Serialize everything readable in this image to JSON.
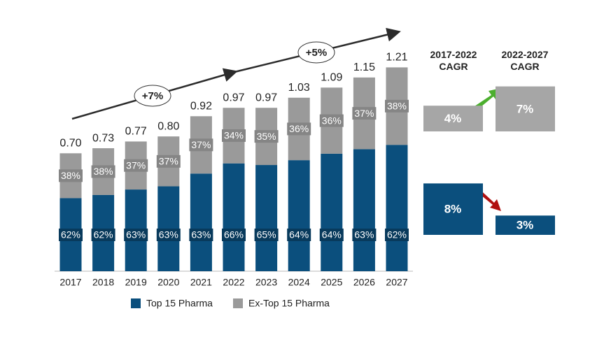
{
  "chart_data": {
    "type": "stacked-bar",
    "categories": [
      "2017",
      "2018",
      "2019",
      "2020",
      "2021",
      "2022",
      "2023",
      "2024",
      "2025",
      "2026",
      "2027"
    ],
    "series": [
      {
        "name": "Top 15 Pharma",
        "color": "#0b4f7d",
        "values": [
          62,
          62,
          63,
          63,
          63,
          66,
          65,
          64,
          64,
          63,
          62
        ],
        "value_labels": [
          "62%",
          "62%",
          "63%",
          "63%",
          "63%",
          "66%",
          "65%",
          "64%",
          "64%",
          "63%",
          "62%"
        ]
      },
      {
        "name": "Ex-Top 15 Pharma",
        "color": "#9a9a9a",
        "values": [
          38,
          38,
          37,
          37,
          37,
          34,
          35,
          36,
          36,
          37,
          38
        ],
        "value_labels": [
          "38%",
          "38%",
          "37%",
          "37%",
          "37%",
          "34%",
          "35%",
          "36%",
          "36%",
          "37%",
          "38%"
        ]
      }
    ],
    "totals": {
      "values": [
        0.7,
        0.73,
        0.77,
        0.8,
        0.92,
        0.97,
        0.97,
        1.03,
        1.09,
        1.15,
        1.21
      ],
      "value_labels": [
        "0.70",
        "0.73",
        "0.77",
        "0.80",
        "0.92",
        "0.97",
        "0.97",
        "1.03",
        "1.09",
        "1.15",
        "1.21"
      ]
    },
    "annotations": [
      "+7%",
      "+5%"
    ],
    "cagr": {
      "headers": [
        "2017-2022 CAGR",
        "2022-2027 CAGR"
      ],
      "rows": [
        {
          "series": "Ex-Top 15 Pharma",
          "color": "#a6a6a6",
          "values": [
            4,
            7
          ],
          "value_labels": [
            "4%",
            "7%"
          ]
        },
        {
          "series": "Top 15 Pharma",
          "color": "#0b4f7d",
          "values": [
            8,
            3
          ],
          "value_labels": [
            "8%",
            "3%"
          ]
        }
      ]
    }
  }
}
